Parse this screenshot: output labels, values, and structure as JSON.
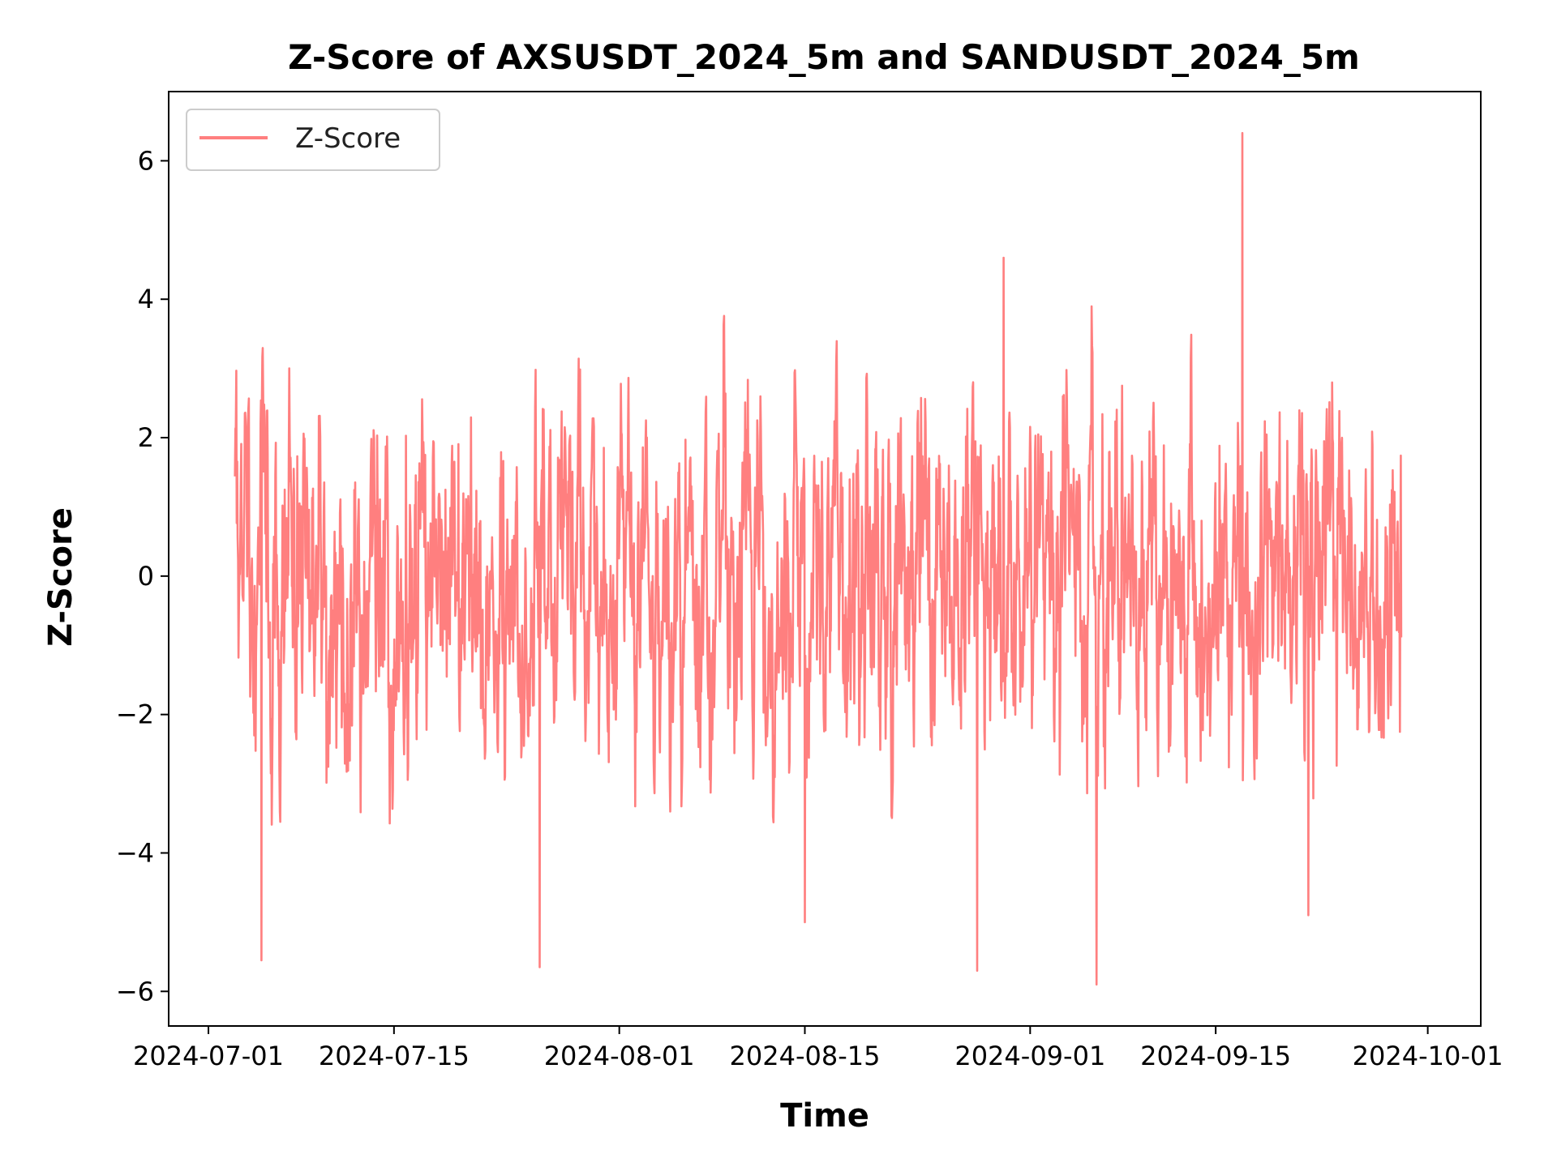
{
  "chart_data": {
    "type": "line",
    "title": "Z-Score of AXSUSDT_2024_5m and SANDUSDT_2024_5m",
    "xlabel": "Time",
    "ylabel": "Z-Score",
    "xlim": [
      "2024-06-28",
      "2024-10-05"
    ],
    "ylim": [
      -6.5,
      7.0
    ],
    "x_ticks": [
      "2024-07-01",
      "2024-07-15",
      "2024-08-01",
      "2024-08-15",
      "2024-09-01",
      "2024-09-15",
      "2024-10-01"
    ],
    "y_ticks": [
      -6,
      -4,
      -2,
      0,
      2,
      4,
      6
    ],
    "y_tick_labels": [
      "−6",
      "−4",
      "−2",
      "0",
      "2",
      "4",
      "6"
    ],
    "grid": false,
    "legend": {
      "position": "top-left",
      "entries": [
        "Z-Score"
      ]
    },
    "series": [
      {
        "name": "Z-Score",
        "color": "#ff7f7f",
        "x_start": "2024-07-03",
        "x_end": "2024-09-29",
        "y_min": -5.9,
        "y_max": 6.4,
        "extremes": [
          {
            "date": "2024-07-05",
            "value": -5.55
          },
          {
            "date": "2024-07-26",
            "value": -5.65
          },
          {
            "date": "2024-08-15",
            "value": -5.0
          },
          {
            "date": "2024-08-28",
            "value": -5.7
          },
          {
            "date": "2024-08-30",
            "value": 4.6
          },
          {
            "date": "2024-09-06",
            "value": -5.9
          },
          {
            "date": "2024-09-17",
            "value": 6.4
          },
          {
            "date": "2024-09-22",
            "value": -4.9
          }
        ]
      }
    ]
  },
  "colors": {
    "series": "#ff7f7f",
    "axes": "#000000",
    "legend_border": "#cccccc"
  }
}
